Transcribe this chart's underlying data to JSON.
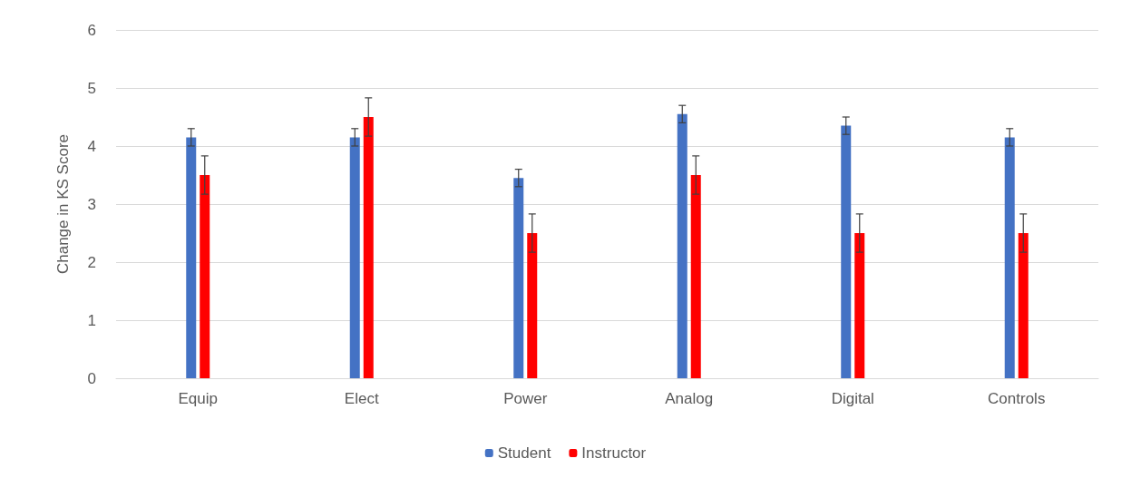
{
  "chart_data": {
    "type": "bar",
    "ylabel": "Change in KS Score",
    "categories": [
      "Equip",
      "Elect",
      "Power",
      "Analog",
      "Digital",
      "Controls"
    ],
    "series": [
      {
        "name": "Student",
        "color": "#4472c4",
        "values": [
          4.15,
          4.15,
          3.45,
          4.55,
          4.35,
          4.15
        ],
        "errors": [
          0.15,
          0.15,
          0.15,
          0.15,
          0.15,
          0.15
        ]
      },
      {
        "name": "Instructor",
        "color": "#ff0000",
        "values": [
          3.5,
          4.5,
          2.5,
          3.5,
          2.5,
          2.5
        ],
        "errors": [
          0.33,
          0.33,
          0.33,
          0.33,
          0.33,
          0.33
        ]
      }
    ],
    "ylim": [
      0,
      6
    ],
    "yticks": [
      0,
      1,
      2,
      3,
      4,
      5,
      6
    ],
    "grid": "y",
    "legend": "bottom"
  }
}
